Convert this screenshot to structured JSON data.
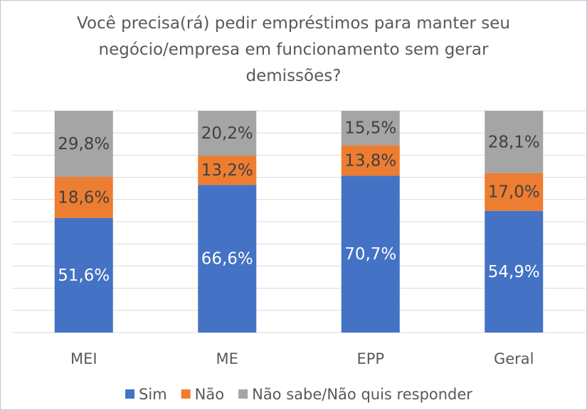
{
  "chart_data": {
    "type": "bar",
    "stacked": true,
    "title": "Você precisa(rá) pedir empréstimos para manter seu negócio/empresa em funcionamento sem gerar demissões?",
    "categories": [
      "MEI",
      "ME",
      "EPP",
      "Geral"
    ],
    "series": [
      {
        "name": "Sim",
        "color": "#4472c4",
        "values": [
          51.6,
          66.6,
          70.7,
          54.9
        ],
        "value_labels": [
          "51,6%",
          "66,6%",
          "70,7%",
          "54,9%"
        ]
      },
      {
        "name": "Não",
        "color": "#ed7d31",
        "values": [
          18.6,
          13.2,
          13.8,
          17.0
        ],
        "value_labels": [
          "18,6%",
          "13,2%",
          "13,8%",
          "17,0%"
        ]
      },
      {
        "name": "Não sabe/Não quis responder",
        "color": "#a5a5a5",
        "values": [
          29.8,
          20.2,
          15.5,
          28.1
        ],
        "value_labels": [
          "29,8%",
          "20,2%",
          "15,5%",
          "28,1%"
        ]
      }
    ],
    "ylim": [
      0,
      100
    ],
    "yticks": [
      0,
      10,
      20,
      30,
      40,
      50,
      60,
      70,
      80,
      90,
      100
    ],
    "grid": true,
    "legend": "bottom"
  }
}
